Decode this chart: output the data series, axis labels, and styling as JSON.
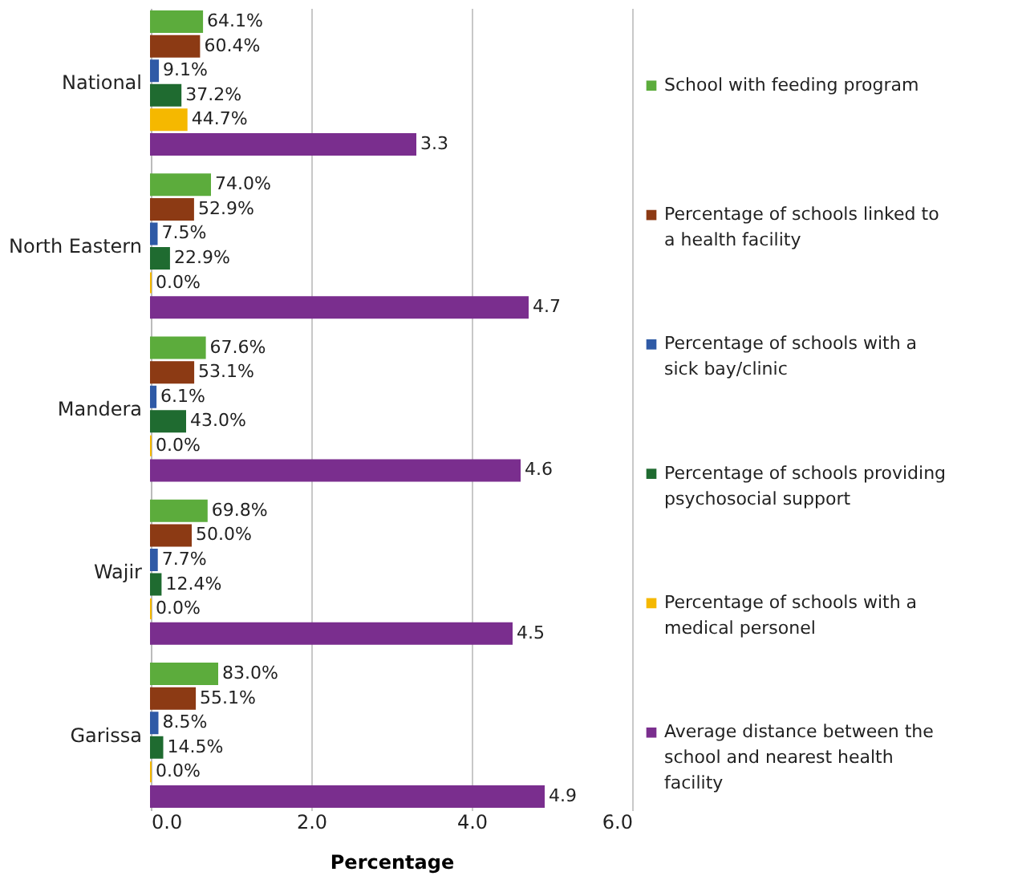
{
  "chart_data": {
    "type": "bar",
    "orientation": "horizontal",
    "xlabel": "Percentage",
    "categories": [
      "National",
      "North Eastern",
      "Mandera",
      "Wajir",
      "Garissa"
    ],
    "xlim": [
      0,
      6
    ],
    "xticks": [
      {
        "value": 0,
        "label": "0.0"
      },
      {
        "value": 2,
        "label": "2.0"
      },
      {
        "value": 4,
        "label": "4.0"
      },
      {
        "value": 6,
        "label": "6.0"
      }
    ],
    "grid": "x",
    "legend": "right",
    "series": [
      {
        "name": "School with feeding program",
        "color": "#5cac3c",
        "values": [
          0.641,
          0.74,
          0.676,
          0.698,
          0.83
        ],
        "value_labels": [
          "64.1%",
          "74.0%",
          "67.6%",
          "69.8%",
          "83.0%"
        ]
      },
      {
        "name": "Percentage of schools linked to a health facility",
        "color": "#8c3a14",
        "values": [
          0.604,
          0.529,
          0.531,
          0.5,
          0.551
        ],
        "value_labels": [
          "60.4%",
          "52.9%",
          "53.1%",
          "50.0%",
          "55.1%"
        ]
      },
      {
        "name": "Percentage of schools with a sick bay/clinic",
        "color": "#2f5aa6",
        "values": [
          0.091,
          0.075,
          0.061,
          0.077,
          0.085
        ],
        "value_labels": [
          "9.1%",
          "7.5%",
          "6.1%",
          "7.7%",
          "8.5%"
        ]
      },
      {
        "name": "Percentage  of schools providing psychosocial support",
        "color": "#1f6b30",
        "values": [
          0.372,
          0.229,
          0.43,
          0.124,
          0.145
        ],
        "value_labels": [
          "37.2%",
          "22.9%",
          "43.0%",
          "12.4%",
          "14.5%"
        ]
      },
      {
        "name": "Percentage of schools with a medical personel",
        "color": "#f5b800",
        "values": [
          0.447,
          0,
          0,
          0,
          0
        ],
        "value_labels": [
          "44.7%",
          "0.0%",
          "0.0%",
          "0.0%",
          "0.0%"
        ]
      },
      {
        "name": "Average distance between the school and nearest health facility",
        "color": "#7a2e8e",
        "values": [
          3.3,
          4.7,
          4.6,
          4.5,
          4.9
        ],
        "value_labels": [
          "3.3",
          "4.7",
          "4.6",
          "4.5",
          "4.9"
        ]
      }
    ]
  }
}
